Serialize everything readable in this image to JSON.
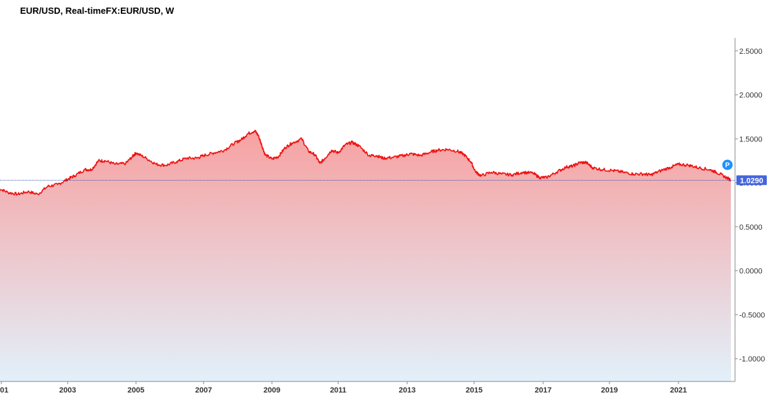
{
  "chart_data": {
    "type": "area",
    "title": "EUR/USD, Real-timeFX:EUR/USD, W",
    "xlabel": "",
    "ylabel": "",
    "x_tick_labels": [
      "01",
      "2003",
      "2005",
      "2007",
      "2009",
      "2011",
      "2013",
      "2015",
      "2017",
      "2019",
      "2021"
    ],
    "y_tick_labels": [
      "2.5000",
      "2.0000",
      "1.5000",
      "1.0000",
      "0.5000",
      "0.0000",
      "-0.5000",
      "-1.0000"
    ],
    "y_ticks": [
      2.5,
      2.0,
      1.5,
      1.0,
      0.5,
      0.0,
      -0.5,
      -1.0
    ],
    "ylim": [
      -1.25,
      2.65
    ],
    "xlim": [
      2000.9,
      2022.52
    ],
    "last_value": 1.029,
    "last_value_label": "1.0290",
    "marker_label": "P",
    "grid": false,
    "legend": "none",
    "colors": {
      "line": "#ee1111",
      "fill_top": "#f7a1a1",
      "fill_bottom": "#e2f0fa",
      "last_label_bg": "#4466dd",
      "marker_bg": "#1e90ff"
    },
    "series": [
      {
        "x": [
          2000.9,
          2001.2,
          2001.5,
          2001.8,
          2002.1,
          2002.4,
          2002.7,
          2003.0,
          2003.2,
          2003.5,
          2003.7,
          2003.9,
          2004.1,
          2004.4,
          2004.7,
          2004.9,
          2005.0,
          2005.3,
          2005.6,
          2005.9,
          2006.2,
          2006.5,
          2006.8,
          2007.0,
          2007.3,
          2007.6,
          2007.9,
          2008.1,
          2008.3,
          2008.5,
          2008.6,
          2008.7,
          2008.8,
          2009.0,
          2009.2,
          2009.4,
          2009.6,
          2009.9,
          2010.1,
          2010.3,
          2010.45,
          2010.6,
          2010.8,
          2011.0,
          2011.2,
          2011.4,
          2011.6,
          2011.9,
          2012.1,
          2012.3,
          2012.6,
          2012.9,
          2013.1,
          2013.4,
          2013.7,
          2013.9,
          2014.2,
          2014.5,
          2014.7,
          2014.9,
          2015.05,
          2015.2,
          2015.5,
          2015.8,
          2016.1,
          2016.4,
          2016.7,
          2016.9,
          2017.1,
          2017.4,
          2017.7,
          2017.9,
          2018.1,
          2018.3,
          2018.5,
          2018.8,
          2019.1,
          2019.4,
          2019.7,
          2020.0,
          2020.2,
          2020.5,
          2020.8,
          2021.0,
          2021.3,
          2021.6,
          2021.9,
          2022.1,
          2022.3,
          2022.52
        ],
        "y": [
          0.94,
          0.89,
          0.87,
          0.9,
          0.87,
          0.96,
          0.98,
          1.04,
          1.08,
          1.15,
          1.15,
          1.25,
          1.25,
          1.21,
          1.22,
          1.3,
          1.34,
          1.28,
          1.21,
          1.2,
          1.24,
          1.28,
          1.28,
          1.31,
          1.34,
          1.37,
          1.45,
          1.49,
          1.56,
          1.59,
          1.54,
          1.43,
          1.32,
          1.27,
          1.3,
          1.4,
          1.45,
          1.5,
          1.36,
          1.32,
          1.22,
          1.28,
          1.37,
          1.34,
          1.43,
          1.46,
          1.42,
          1.31,
          1.31,
          1.28,
          1.29,
          1.31,
          1.33,
          1.31,
          1.35,
          1.37,
          1.38,
          1.36,
          1.32,
          1.24,
          1.12,
          1.08,
          1.12,
          1.1,
          1.09,
          1.12,
          1.11,
          1.06,
          1.06,
          1.12,
          1.18,
          1.19,
          1.23,
          1.23,
          1.17,
          1.15,
          1.14,
          1.12,
          1.1,
          1.1,
          1.09,
          1.14,
          1.18,
          1.21,
          1.2,
          1.17,
          1.15,
          1.12,
          1.08,
          1.03
        ]
      }
    ]
  }
}
